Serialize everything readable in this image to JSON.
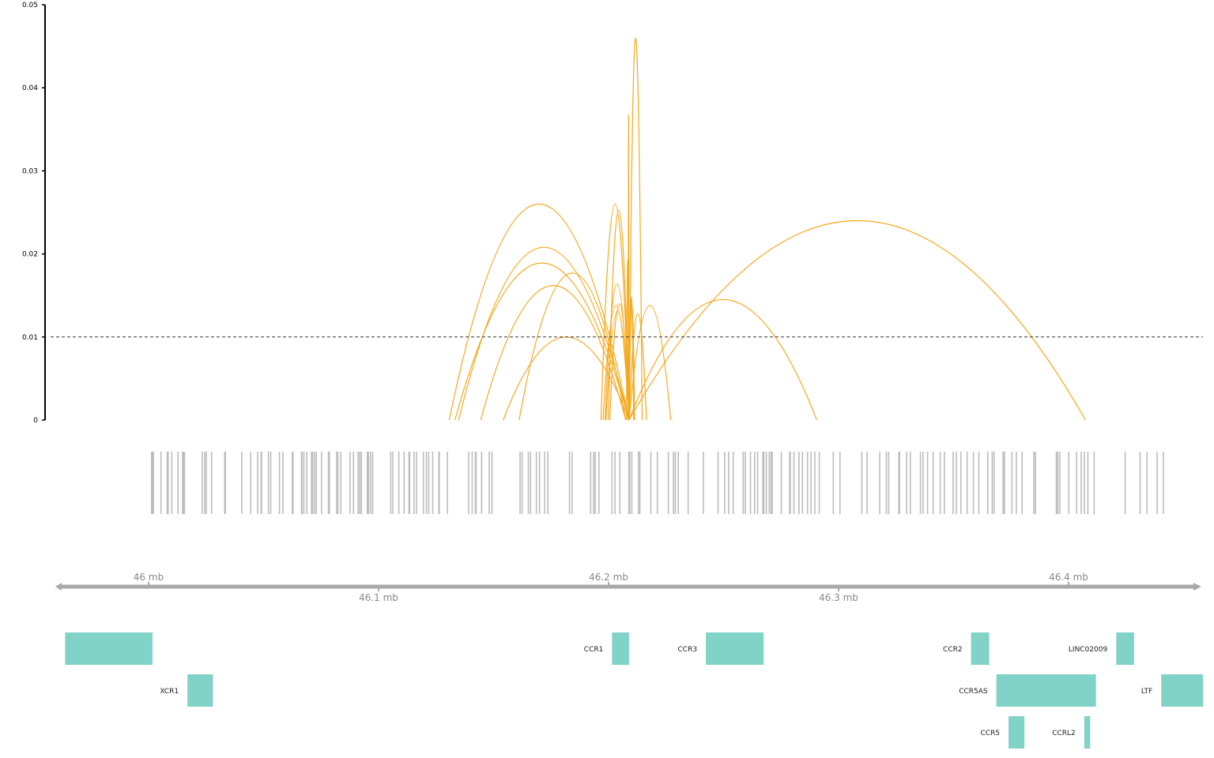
{
  "colors": {
    "arc": "#f6a81c",
    "snp": "#bdbdbd",
    "gene": "#82d3c7",
    "axis": "#000000",
    "genome_axis": "#a8a8a8",
    "threshold": "#333333",
    "tick_text": "#000000",
    "mb_text": "#888888",
    "gene_text": "#222222"
  },
  "chart_data": {
    "type": "arc",
    "y_axis": {
      "ylim": [
        0,
        0.05
      ],
      "ticks": [
        "0",
        "0.01",
        "0.02",
        "0.03",
        "0.04",
        "0.05"
      ]
    },
    "x_range_mb": [
      45.98,
      46.43
    ],
    "threshold": 0.01,
    "genome_ticks": [
      {
        "mb": 46.0,
        "label": "46 mb",
        "pos": "above"
      },
      {
        "mb": 46.1,
        "label": "46.1 mb",
        "pos": "below"
      },
      {
        "mb": 46.2,
        "label": "46.2 mb",
        "pos": "above"
      },
      {
        "mb": 46.3,
        "label": "46.3 mb",
        "pos": "below"
      },
      {
        "mb": 46.4,
        "label": "46.4 mb",
        "pos": "above"
      }
    ],
    "arcs": [
      {
        "start": 46.1307,
        "end": 46.2089,
        "height": 0.026
      },
      {
        "start": 46.1348,
        "end": 46.2089,
        "height": 0.0208
      },
      {
        "start": 46.1332,
        "end": 46.2089,
        "height": 0.0189
      },
      {
        "start": 46.1444,
        "end": 46.2075,
        "height": 0.0162
      },
      {
        "start": 46.1542,
        "end": 46.2089,
        "height": 0.01
      },
      {
        "start": 46.1611,
        "end": 46.2075,
        "height": 0.0177
      },
      {
        "start": 46.1967,
        "end": 46.2089,
        "height": 0.026
      },
      {
        "start": 46.1976,
        "end": 46.2089,
        "height": 0.0138
      },
      {
        "start": 46.1985,
        "end": 46.2089,
        "height": 0.0164
      },
      {
        "start": 46.1989,
        "end": 46.2089,
        "height": 0.0131
      },
      {
        "start": 46.1999,
        "end": 46.2089,
        "height": 0.0253
      },
      {
        "start": 46.2005,
        "end": 46.2089,
        "height": 0.014
      },
      {
        "start": 46.2085,
        "end": 46.2089,
        "height": 0.0367
      },
      {
        "start": 46.2078,
        "end": 46.2089,
        "height": 0.0192
      },
      {
        "start": 46.2089,
        "end": 46.2146,
        "height": 0.046
      },
      {
        "start": 46.2089,
        "end": 46.2109,
        "height": 0.0148
      },
      {
        "start": 46.2089,
        "end": 46.2113,
        "height": 0.0139
      },
      {
        "start": 46.2089,
        "end": 46.2165,
        "height": 0.0128
      },
      {
        "start": 46.2089,
        "end": 46.227,
        "height": 0.0138
      },
      {
        "start": 46.2089,
        "end": 46.2905,
        "height": 0.0145
      },
      {
        "start": 46.2089,
        "end": 46.4074,
        "height": 0.024
      }
    ],
    "snps": [
      46.0013,
      46.0016,
      46.0021,
      46.0054,
      46.0081,
      46.0085,
      46.0101,
      46.0128,
      46.0148,
      46.0151,
      46.0156,
      46.0233,
      46.0244,
      46.0251,
      46.0274,
      46.0331,
      46.0334,
      46.0405,
      46.0444,
      46.0474,
      46.0489,
      46.0491,
      46.0521,
      46.0531,
      46.0569,
      46.0584,
      46.0625,
      46.0628,
      46.0665,
      46.0667,
      46.0675,
      46.0688,
      46.0708,
      46.0713,
      46.0721,
      46.0729,
      46.0752,
      46.0782,
      46.0786,
      46.0818,
      46.0823,
      46.0836,
      46.0876,
      46.0891,
      46.0911,
      46.0918,
      46.0925,
      46.0951,
      46.0956,
      46.0965,
      46.0974,
      46.1053,
      46.1062,
      46.1088,
      46.1111,
      46.1132,
      46.1135,
      46.1154,
      46.1165,
      46.1195,
      46.1208,
      46.1218,
      46.1235,
      46.1262,
      46.1264,
      46.1299,
      46.1392,
      46.1407,
      46.1421,
      46.1424,
      46.1448,
      46.1481,
      46.1493,
      46.1615,
      46.1624,
      46.1651,
      46.1661,
      46.1686,
      46.17,
      46.1722,
      46.1736,
      46.183,
      46.1841,
      46.1922,
      46.1935,
      46.1942,
      46.1958,
      46.2015,
      46.2028,
      46.2049,
      46.2088,
      46.2092,
      46.2101,
      46.213,
      46.2136,
      46.2184,
      46.2212,
      46.226,
      46.2282,
      46.229,
      46.2303,
      46.2346,
      46.2412,
      46.2476,
      46.2505,
      46.2522,
      46.2542,
      46.2585,
      46.2594,
      46.2617,
      46.2635,
      46.2648,
      46.2671,
      46.2675,
      46.2686,
      46.2699,
      46.2707,
      46.2711,
      46.2751,
      46.2787,
      46.279,
      46.2806,
      46.2828,
      46.2843,
      46.2865,
      46.288,
      46.2897,
      46.2916,
      46.2977,
      46.3006,
      46.3101,
      46.3124,
      46.3179,
      46.3208,
      46.3218,
      46.3262,
      46.3265,
      46.3296,
      46.3312,
      46.3356,
      46.3367,
      46.3387,
      46.3411,
      46.3442,
      46.346,
      46.3498,
      46.3512,
      46.3532,
      46.3559,
      46.3586,
      46.361,
      46.3649,
      46.3668,
      46.3676,
      46.3715,
      46.3721,
      46.3754,
      46.3773,
      46.3798,
      46.3849,
      46.3856,
      46.3947,
      46.3953,
      46.3962,
      46.4001,
      46.4035,
      46.4055,
      46.4069,
      46.4084,
      46.4111,
      46.4246,
      46.4311,
      46.4341,
      46.4385,
      46.4412
    ]
  },
  "genes": [
    {
      "name": "",
      "start": 45.9637,
      "end": 46.0017,
      "row": 0
    },
    {
      "name": "XCR1",
      "start": 46.0169,
      "end": 46.028,
      "row": 1
    },
    {
      "name": "CCR1",
      "start": 46.2015,
      "end": 46.2089,
      "row": 0
    },
    {
      "name": "CCR3",
      "start": 46.2423,
      "end": 46.2674,
      "row": 0
    },
    {
      "name": "CCR2",
      "start": 46.3576,
      "end": 46.3655,
      "row": 0
    },
    {
      "name": "LINC02009",
      "start": 46.4207,
      "end": 46.4285,
      "row": 0
    },
    {
      "name": "CCR5AS",
      "start": 46.3686,
      "end": 46.4119,
      "row": 1
    },
    {
      "name": "LTF",
      "start": 46.4403,
      "end": 46.4631,
      "row": 1
    },
    {
      "name": "CCR5",
      "start": 46.3739,
      "end": 46.3808,
      "row": 2
    },
    {
      "name": "CCRL2",
      "start": 46.4068,
      "end": 46.4094,
      "row": 2
    }
  ]
}
